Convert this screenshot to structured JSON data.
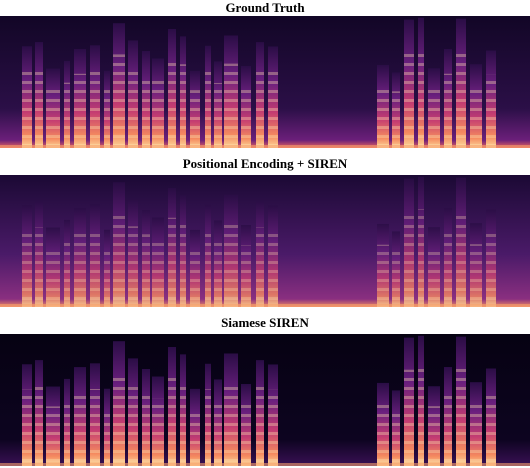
{
  "panels": [
    {
      "title": "Ground Truth"
    },
    {
      "title": "Positional Encoding + SIREN"
    },
    {
      "title": "Siamese SIREN"
    }
  ]
}
